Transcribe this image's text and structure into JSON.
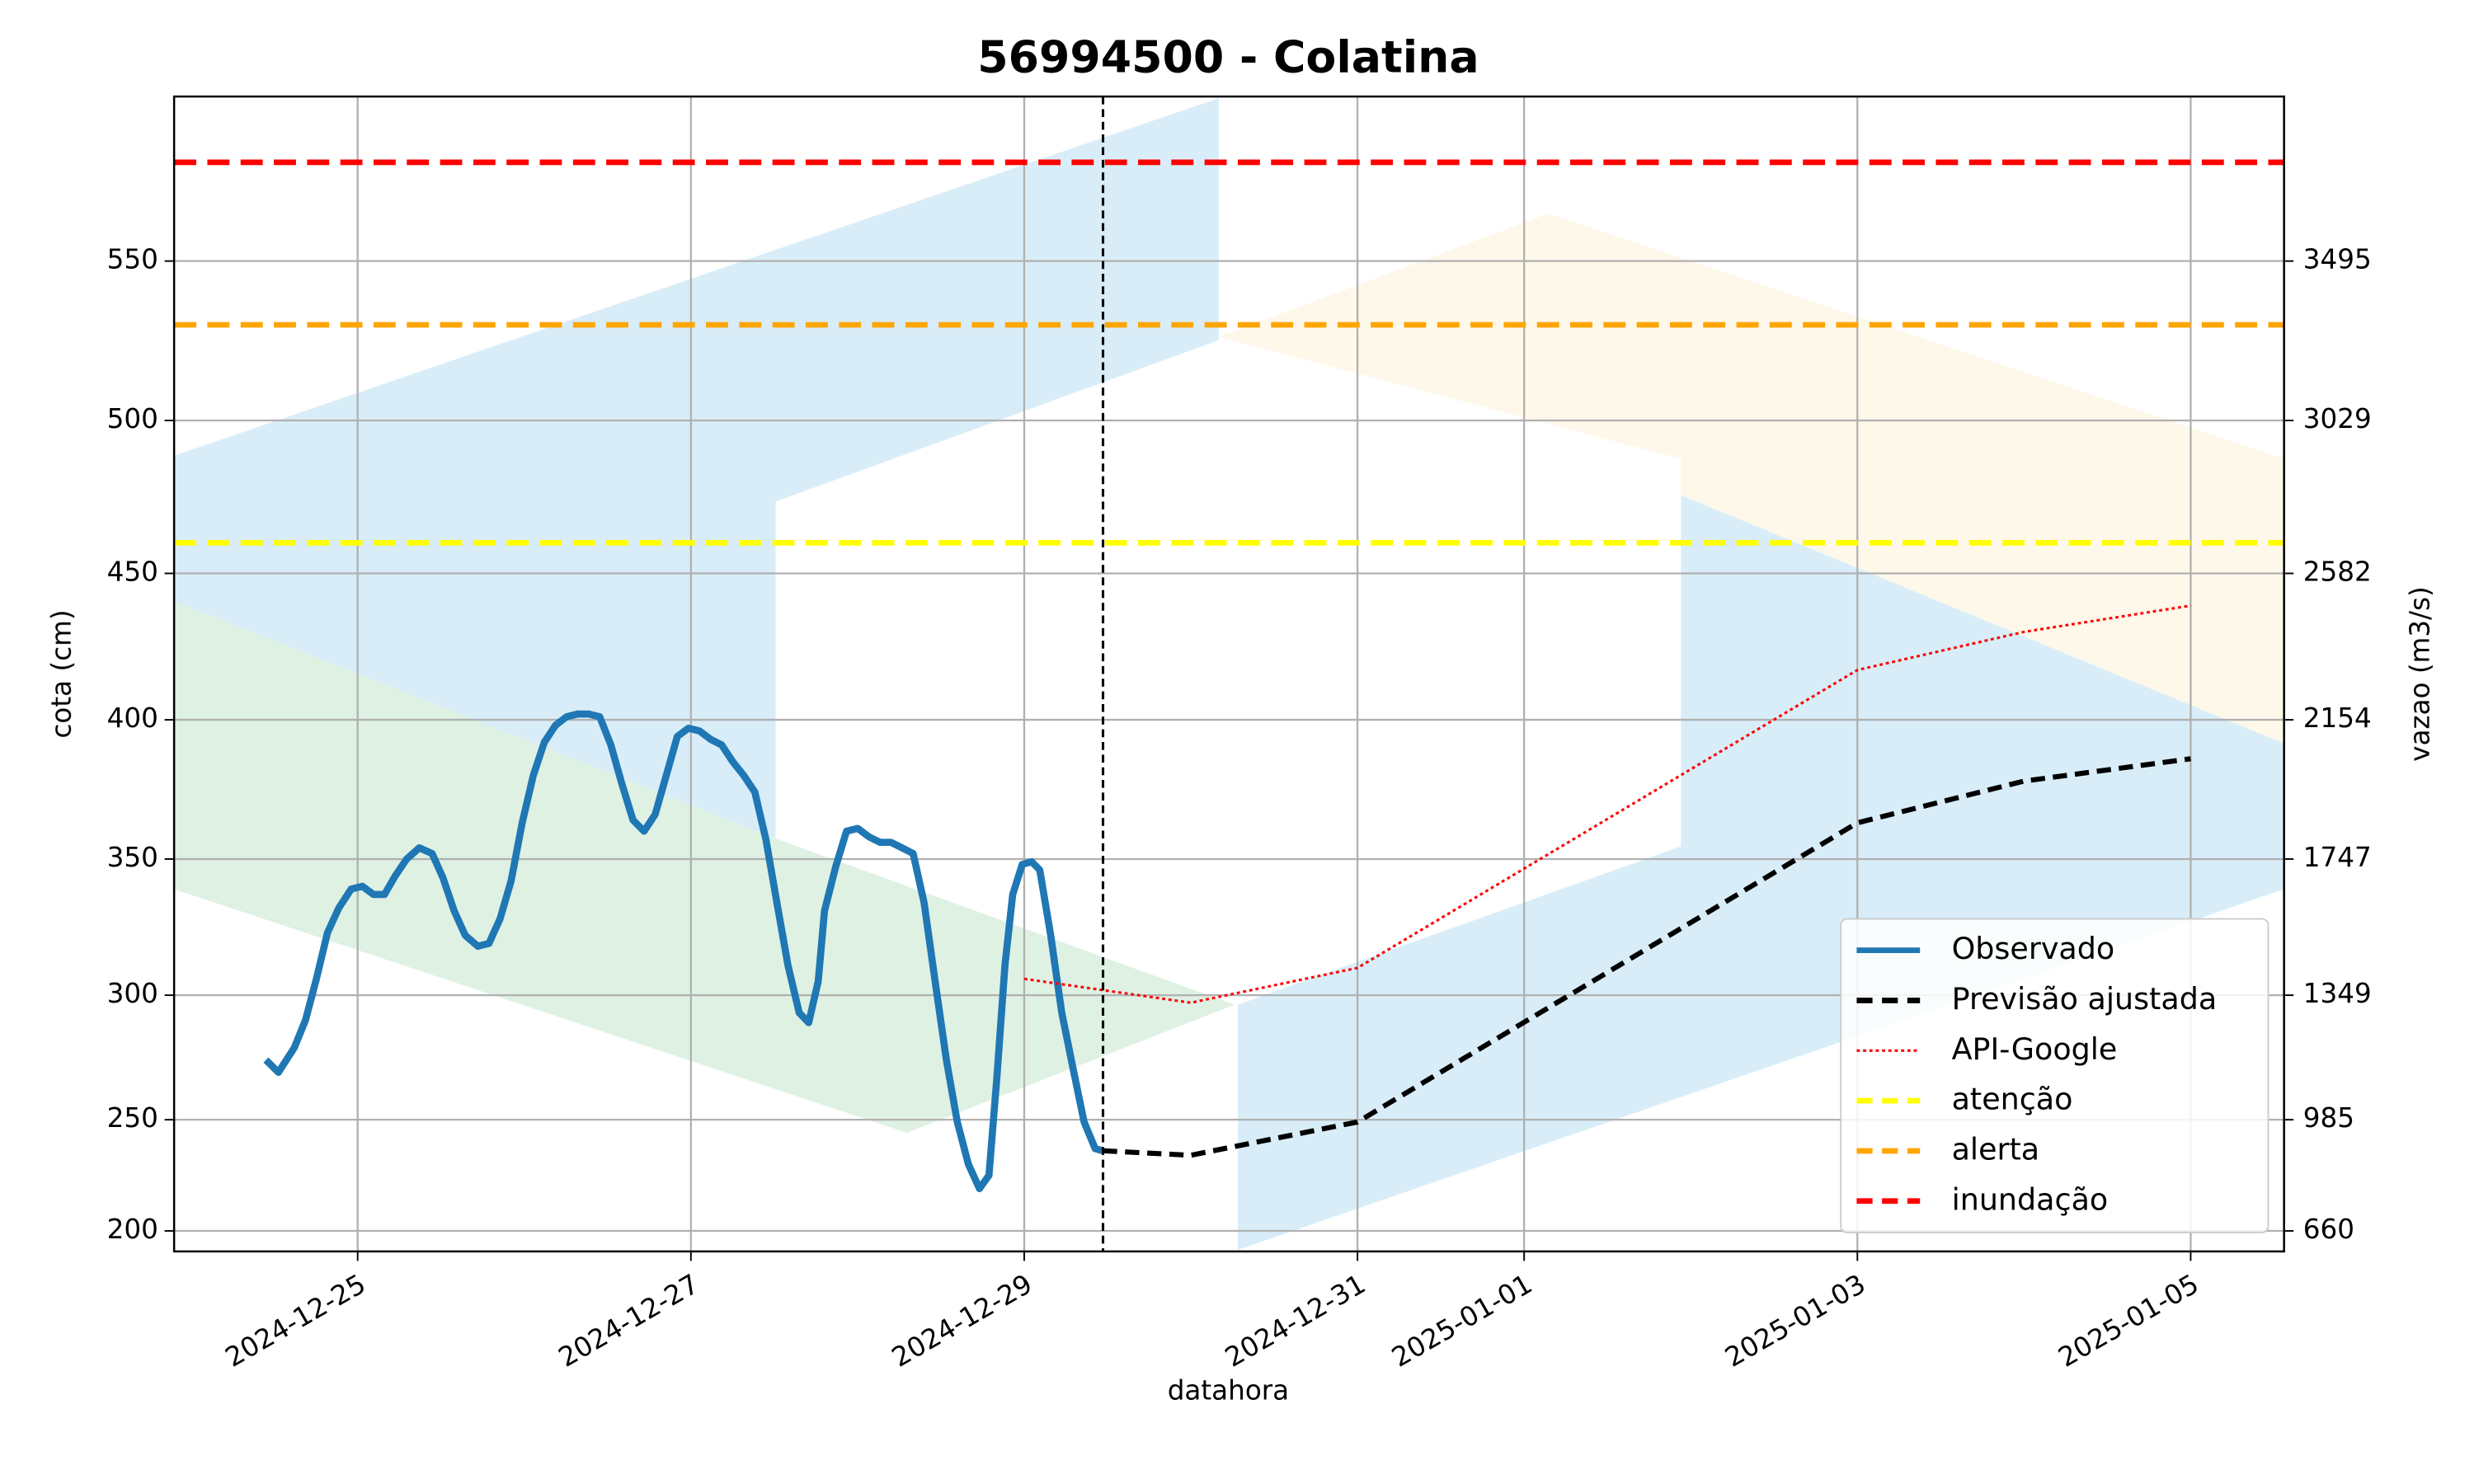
{
  "chart_data": {
    "type": "line",
    "title": "56994500 - Colatina",
    "xlabel": "datahora",
    "ylabel": "cota (cm)",
    "y2label": "vazao (m3/s)",
    "xlim": [
      "2024-12-23T21:34",
      "2025-01-05T13:27"
    ],
    "xticks": [
      "2024-12-25",
      "2024-12-27",
      "2024-12-29",
      "2024-12-31",
      "2025-01-01",
      "2025-01-03",
      "2025-01-05"
    ],
    "ylim": [
      190.7,
      600
    ],
    "yticks": [
      200,
      250,
      300,
      350,
      400,
      450,
      500,
      550
    ],
    "y2lim": [
      600,
      3976
    ],
    "y2ticks": [
      660,
      985,
      1349,
      1747,
      2154,
      2582,
      3029,
      3495
    ],
    "grid": true,
    "legend": "lower right",
    "vline": "2024-12-29T11:21",
    "series": [
      {
        "name": "Observado",
        "color": "#1f77b4",
        "style": "solid",
        "x": [
          "2024-12-24T10:47",
          "2024-12-24T12:36",
          "2024-12-24T14:53",
          "2024-12-24T16:29",
          "2024-12-24T18:04",
          "2024-12-24T19:40",
          "2024-12-24T21:16",
          "2024-12-24T23:05",
          "2024-12-25T00:41",
          "2024-12-25T02:17",
          "2024-12-25T03:52",
          "2024-12-25T05:28",
          "2024-12-25T07:04",
          "2024-12-25T08:53",
          "2024-12-25T10:43",
          "2024-12-25T12:18",
          "2024-12-25T13:54",
          "2024-12-25T15:30",
          "2024-12-25T17:19",
          "2024-12-25T18:55",
          "2024-12-25T20:31",
          "2024-12-25T22:06",
          "2024-12-25T23:42",
          "2024-12-26T01:18",
          "2024-12-26T02:53",
          "2024-12-26T04:29",
          "2024-12-26T06:05",
          "2024-12-26T07:41",
          "2024-12-26T09:16",
          "2024-12-26T10:52",
          "2024-12-26T12:28",
          "2024-12-26T14:04",
          "2024-12-26T15:39",
          "2024-12-26T17:15",
          "2024-12-26T18:51",
          "2024-12-26T20:26",
          "2024-12-26T22:02",
          "2024-12-26T23:38",
          "2024-12-27T01:14",
          "2024-12-27T02:49",
          "2024-12-27T04:25",
          "2024-12-27T06:01",
          "2024-12-27T07:37",
          "2024-12-27T09:12",
          "2024-12-27T10:48",
          "2024-12-27T12:23",
          "2024-12-27T13:59",
          "2024-12-27T15:35",
          "2024-12-27T16:57",
          "2024-12-27T18:19",
          "2024-12-27T19:14",
          "2024-12-27T20:50",
          "2024-12-27T22:25",
          "2024-12-28T00:01",
          "2024-12-28T01:37",
          "2024-12-28T03:13",
          "2024-12-28T04:48",
          "2024-12-28T06:24",
          "2024-12-28T08:00",
          "2024-12-28T09:35",
          "2024-12-28T11:11",
          "2024-12-28T12:47",
          "2024-12-28T14:22",
          "2024-12-28T15:58",
          "2024-12-28T17:34",
          "2024-12-28T18:56",
          "2024-12-28T20:04",
          "2024-12-28T21:13",
          "2024-12-28T22:21",
          "2024-12-28T23:43",
          "2024-12-29T01:05",
          "2024-12-29T02:14",
          "2024-12-29T03:49",
          "2024-12-29T05:25",
          "2024-12-29T07:01",
          "2024-12-29T08:37",
          "2024-12-29T10:13",
          "2024-12-29T11:21"
        ],
        "values": [
          274,
          269,
          279,
          290,
          306,
          323,
          332,
          339,
          340,
          337,
          337,
          344,
          350,
          354,
          352,
          343,
          331,
          322,
          318,
          319,
          328,
          342,
          363,
          380,
          392,
          398,
          401,
          402,
          402,
          401,
          391,
          377,
          364,
          360,
          366,
          380,
          394,
          397,
          396,
          393,
          391,
          385,
          380,
          374,
          357,
          334,
          311,
          293,
          289,
          305,
          331,
          347,
          360,
          361,
          358,
          356,
          356,
          354,
          352,
          334,
          305,
          274,
          249,
          230,
          219,
          225,
          267,
          311,
          337,
          348,
          349,
          346,
          322,
          293,
          271,
          249,
          237,
          236
        ]
      },
      {
        "name": "Previsão ajustada",
        "color": "#000000",
        "style": "dashed",
        "x": [
          "2024-12-29T11:21",
          "2024-12-30T00:00",
          "2024-12-31T00:00",
          "2025-01-03T00:00",
          "2025-01-04T00:00",
          "2025-01-05T00:00"
        ],
        "values": [
          236,
          234,
          249,
          363,
          378,
          386
        ]
      },
      {
        "name": "API-Google",
        "color": "#ff0000",
        "style": "dotted",
        "x": [
          "2024-12-29T00:00",
          "2024-12-30T00:00",
          "2024-12-31T00:00",
          "2025-01-03T00:00",
          "2025-01-04T00:00",
          "2025-01-05T00:00"
        ],
        "values": [
          306,
          297,
          310,
          417,
          430,
          439
        ]
      }
    ],
    "hlines": [
      {
        "name": "atenção",
        "value": 460,
        "color": "#ffff00"
      },
      {
        "name": "alerta",
        "value": 530,
        "color": "#ffa500"
      },
      {
        "name": "inundação",
        "value": 580,
        "color": "#ff0000"
      }
    ]
  }
}
